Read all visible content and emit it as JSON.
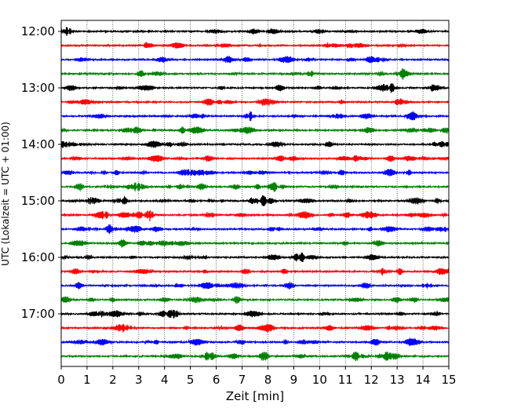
{
  "chart_data": {
    "type": "line",
    "title": "",
    "xlabel": "Zeit  [min]",
    "ylabel": "UTC (Lokalzeit = UTC + 01:00)",
    "xlim": [
      0,
      15
    ],
    "x_ticks": [
      0,
      1,
      2,
      3,
      4,
      5,
      6,
      7,
      8,
      9,
      10,
      11,
      12,
      13,
      14,
      15
    ],
    "x_tick_labels": [
      "0",
      "1",
      "2",
      "3",
      "4",
      "5",
      "6",
      "7",
      "8",
      "9",
      "10",
      "11",
      "12",
      "13",
      "14",
      "15"
    ],
    "y_tick_labels": [
      "12:00",
      "13:00",
      "14:00",
      "15:00",
      "16:00",
      "17:00"
    ],
    "traces_per_hour": 4,
    "minutes_per_trace": 15,
    "grid": "vertical dotted lines at each minute",
    "trace_colors": [
      "#000000",
      "#ff0000",
      "#0000ff",
      "#008000"
    ],
    "series": [
      {
        "name": "12:00",
        "color": "#000000"
      },
      {
        "name": "12:15",
        "color": "#ff0000"
      },
      {
        "name": "12:30",
        "color": "#0000ff"
      },
      {
        "name": "12:45",
        "color": "#008000"
      },
      {
        "name": "13:00",
        "color": "#000000"
      },
      {
        "name": "13:15",
        "color": "#ff0000"
      },
      {
        "name": "13:30",
        "color": "#0000ff"
      },
      {
        "name": "13:45",
        "color": "#008000"
      },
      {
        "name": "14:00",
        "color": "#000000"
      },
      {
        "name": "14:15",
        "color": "#ff0000"
      },
      {
        "name": "14:30",
        "color": "#0000ff"
      },
      {
        "name": "14:45",
        "color": "#008000"
      },
      {
        "name": "15:00",
        "color": "#000000"
      },
      {
        "name": "15:15",
        "color": "#ff0000"
      },
      {
        "name": "15:30",
        "color": "#0000ff"
      },
      {
        "name": "15:45",
        "color": "#008000"
      },
      {
        "name": "16:00",
        "color": "#000000"
      },
      {
        "name": "16:15",
        "color": "#ff0000"
      },
      {
        "name": "16:30",
        "color": "#0000ff"
      },
      {
        "name": "16:45",
        "color": "#008000"
      },
      {
        "name": "17:00",
        "color": "#000000"
      },
      {
        "name": "17:15",
        "color": "#ff0000"
      },
      {
        "name": "17:30",
        "color": "#0000ff"
      },
      {
        "name": "17:45",
        "color": "#008000"
      }
    ]
  }
}
